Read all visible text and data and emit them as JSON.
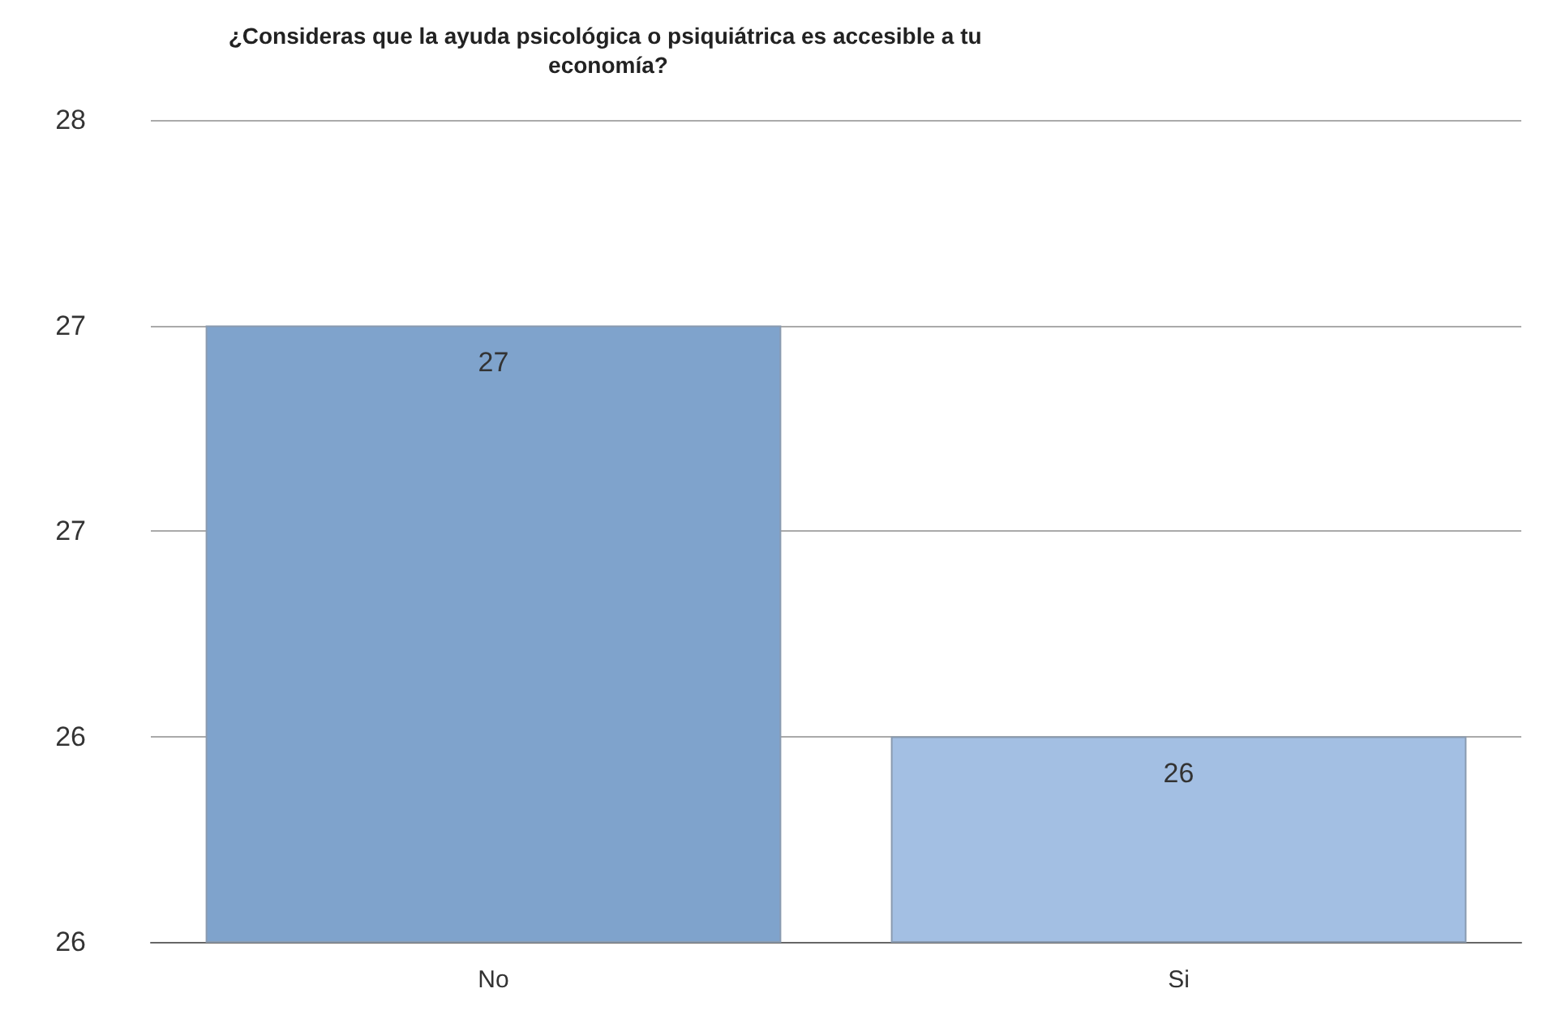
{
  "chart_data": {
    "type": "bar",
    "title": "¿Consideras que la ayuda psicológica o psiquiátrica es accesible a tu economía?",
    "categories": [
      "No",
      "Si"
    ],
    "values": [
      27,
      26
    ],
    "colors": [
      "#7fa3cc",
      "#a3bfe3"
    ],
    "ylim": [
      25.5,
      27.5
    ],
    "yticks": [
      {
        "value": 25.5,
        "label": "26"
      },
      {
        "value": 26,
        "label": "26"
      },
      {
        "value": 26.5,
        "label": "27"
      },
      {
        "value": 27,
        "label": "27"
      },
      {
        "value": 27.5,
        "label": "28"
      }
    ],
    "grid": "y",
    "data_labels": true
  }
}
